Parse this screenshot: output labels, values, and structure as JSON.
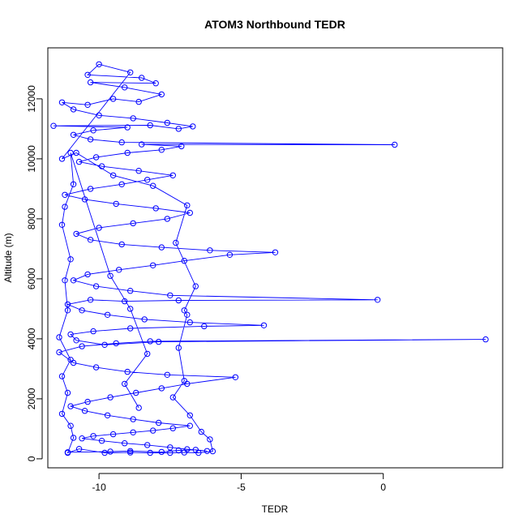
{
  "chart_data": {
    "type": "scatter",
    "title": "ATOM3 Northbound TEDR",
    "xlabel": "TEDR",
    "ylabel": "Altitude (m)",
    "xlim": [
      -11.8,
      4.2
    ],
    "ylim": [
      -300,
      13700
    ],
    "x_ticks": [
      -10,
      -5,
      0
    ],
    "y_ticks": [
      0,
      2000,
      4000,
      6000,
      8000,
      10000,
      12000
    ],
    "grid": false,
    "legend": "none",
    "series_color": "#0000ff",
    "marker": "open-circle",
    "connected": true,
    "series": [
      {
        "points": [
          [
            -11.1,
            220
          ],
          [
            -9.6,
            240
          ],
          [
            -8.9,
            260
          ],
          [
            -7.8,
            230
          ],
          [
            -7.2,
            280
          ],
          [
            -6.6,
            300
          ],
          [
            -6.2,
            260
          ],
          [
            -6.9,
            320
          ],
          [
            -7.5,
            380
          ],
          [
            -8.3,
            460
          ],
          [
            -9.1,
            520
          ],
          [
            -9.9,
            600
          ],
          [
            -10.6,
            680
          ],
          [
            -10.2,
            760
          ],
          [
            -9.5,
            820
          ],
          [
            -8.8,
            880
          ],
          [
            -8.1,
            940
          ],
          [
            -7.4,
            1020
          ],
          [
            -6.8,
            1100
          ],
          [
            -7.9,
            1200
          ],
          [
            -8.8,
            1320
          ],
          [
            -9.7,
            1450
          ],
          [
            -10.5,
            1600
          ],
          [
            -11.0,
            1750
          ],
          [
            -10.4,
            1900
          ],
          [
            -9.6,
            2050
          ],
          [
            -8.7,
            2200
          ],
          [
            -7.8,
            2350
          ],
          [
            -6.9,
            2500
          ],
          [
            -5.2,
            2720
          ],
          [
            -7.6,
            2800
          ],
          [
            -9.0,
            2900
          ],
          [
            -10.1,
            3050
          ],
          [
            -10.9,
            3200
          ],
          [
            -11.4,
            3550
          ],
          [
            -10.6,
            3750
          ],
          [
            -9.4,
            3850
          ],
          [
            -8.2,
            3920
          ],
          [
            3.6,
            3980
          ],
          [
            -7.9,
            3900
          ],
          [
            -9.8,
            3800
          ],
          [
            -10.8,
            3950
          ],
          [
            -11.0,
            4150
          ],
          [
            -10.2,
            4250
          ],
          [
            -8.9,
            4350
          ],
          [
            -6.3,
            4420
          ],
          [
            -4.2,
            4450
          ],
          [
            -6.8,
            4550
          ],
          [
            -8.4,
            4650
          ],
          [
            -9.7,
            4800
          ],
          [
            -10.6,
            4950
          ],
          [
            -11.1,
            5150
          ],
          [
            -10.3,
            5300
          ],
          [
            -9.1,
            5250
          ],
          [
            -7.2,
            5280
          ],
          [
            -0.2,
            5300
          ],
          [
            -7.5,
            5450
          ],
          [
            -8.9,
            5600
          ],
          [
            -10.1,
            5750
          ],
          [
            -10.9,
            5950
          ],
          [
            -10.4,
            6150
          ],
          [
            -9.3,
            6300
          ],
          [
            -8.1,
            6450
          ],
          [
            -7.0,
            6600
          ],
          [
            -5.4,
            6800
          ],
          [
            -3.8,
            6880
          ],
          [
            -6.1,
            6950
          ],
          [
            -7.8,
            7050
          ],
          [
            -9.2,
            7150
          ],
          [
            -10.3,
            7300
          ],
          [
            -10.8,
            7500
          ],
          [
            -10.0,
            7700
          ],
          [
            -8.8,
            7850
          ],
          [
            -7.6,
            8000
          ],
          [
            -6.8,
            8200
          ],
          [
            -8.0,
            8350
          ],
          [
            -9.4,
            8500
          ],
          [
            -10.5,
            8650
          ],
          [
            -11.2,
            8800
          ],
          [
            -10.3,
            9000
          ],
          [
            -9.2,
            9150
          ],
          [
            -8.3,
            9300
          ],
          [
            -7.4,
            9450
          ],
          [
            -8.6,
            9600
          ],
          [
            -9.9,
            9750
          ],
          [
            -10.7,
            9900
          ],
          [
            -10.1,
            10050
          ],
          [
            -9.0,
            10200
          ],
          [
            -7.8,
            10300
          ],
          [
            -7.1,
            10420
          ],
          [
            -8.5,
            10480
          ],
          [
            0.4,
            10470
          ],
          [
            -9.2,
            10550
          ],
          [
            -10.3,
            10650
          ],
          [
            -10.9,
            10800
          ],
          [
            -10.2,
            10950
          ],
          [
            -9.0,
            11050
          ],
          [
            -11.6,
            11100
          ],
          [
            -8.2,
            11120
          ],
          [
            -7.2,
            11000
          ],
          [
            -6.7,
            11080
          ],
          [
            -7.6,
            11200
          ],
          [
            -8.8,
            11350
          ],
          [
            -10.0,
            11450
          ],
          [
            -10.9,
            11650
          ],
          [
            -11.3,
            11880
          ],
          [
            -10.4,
            11800
          ],
          [
            -9.5,
            12000
          ],
          [
            -8.6,
            11900
          ],
          [
            -7.8,
            12150
          ],
          [
            -9.1,
            12380
          ],
          [
            -10.3,
            12550
          ],
          [
            -8.0,
            12520
          ],
          [
            -8.5,
            12700
          ],
          [
            -10.4,
            12800
          ],
          [
            -10.0,
            13150
          ],
          [
            -8.9,
            12880
          ],
          [
            -11.3,
            10000
          ],
          [
            -10.8,
            10200
          ],
          [
            -9.5,
            9450
          ],
          [
            -8.1,
            9100
          ],
          [
            -6.9,
            8450
          ],
          [
            -7.3,
            7200
          ],
          [
            -6.6,
            5750
          ],
          [
            -7.0,
            4950
          ],
          [
            -6.9,
            4800
          ],
          [
            -7.2,
            3700
          ],
          [
            -7.0,
            2600
          ],
          [
            -7.4,
            2050
          ],
          [
            -6.8,
            1450
          ],
          [
            -6.4,
            900
          ],
          [
            -6.1,
            650
          ],
          [
            -6.0,
            250
          ],
          [
            -6.5,
            200
          ],
          [
            -7.0,
            210
          ],
          [
            -7.5,
            200
          ],
          [
            -8.2,
            200
          ],
          [
            -8.9,
            210
          ],
          [
            -9.8,
            200
          ],
          [
            -10.7,
            330
          ],
          [
            -11.1,
            200
          ],
          [
            -10.9,
            700
          ],
          [
            -11.0,
            1100
          ],
          [
            -11.3,
            1500
          ],
          [
            -11.1,
            2200
          ],
          [
            -11.3,
            2750
          ],
          [
            -11.0,
            3300
          ],
          [
            -11.4,
            4050
          ],
          [
            -11.1,
            4950
          ],
          [
            -11.2,
            5950
          ],
          [
            -11.0,
            6650
          ],
          [
            -11.3,
            7800
          ],
          [
            -11.2,
            8400
          ],
          [
            -10.9,
            9150
          ],
          [
            -11.0,
            10200
          ],
          [
            -9.6,
            6100
          ],
          [
            -8.9,
            5000
          ],
          [
            -8.3,
            3500
          ],
          [
            -9.1,
            2500
          ],
          [
            -8.6,
            1700
          ]
        ]
      }
    ]
  }
}
